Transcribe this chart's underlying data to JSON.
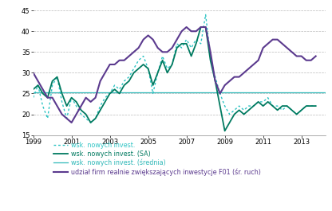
{
  "ylim": [
    15,
    46
  ],
  "yticks": [
    15,
    20,
    25,
    30,
    35,
    40,
    45
  ],
  "xlim": [
    1999.0,
    2014.25
  ],
  "xticks": [
    1999,
    2001,
    2003,
    2005,
    2007,
    2009,
    2011,
    2013
  ],
  "mean_line": 25.2,
  "legend_labels": [
    "wsk. nowych invest.",
    "wsk. nowych invest. (SA)",
    "wsk. nowych invest. (średnia)",
    "udział firm realnie zwiększających inwestycje F01 (śr. ruch)"
  ],
  "colors": {
    "dotted": "#2EC4C4",
    "sa": "#007A60",
    "mean": "#2EB8B8",
    "purple": "#5B3A8E"
  },
  "background": "#FFFFFF",
  "grid_color": "#BBBBBB",
  "times": [
    1999.0,
    1999.25,
    1999.5,
    1999.75,
    2000.0,
    2000.25,
    2000.5,
    2000.75,
    2001.0,
    2001.25,
    2001.5,
    2001.75,
    2002.0,
    2002.25,
    2002.5,
    2002.75,
    2003.0,
    2003.25,
    2003.5,
    2003.75,
    2004.0,
    2004.25,
    2004.5,
    2004.75,
    2005.0,
    2005.25,
    2005.5,
    2005.75,
    2006.0,
    2006.25,
    2006.5,
    2006.75,
    2007.0,
    2007.25,
    2007.5,
    2007.75,
    2008.0,
    2008.25,
    2008.5,
    2008.75,
    2009.0,
    2009.25,
    2009.5,
    2009.75,
    2010.0,
    2010.25,
    2010.5,
    2010.75,
    2011.0,
    2011.25,
    2011.5,
    2011.75,
    2012.0,
    2012.25,
    2012.5,
    2012.75,
    2013.0,
    2013.25,
    2013.5,
    2013.75
  ],
  "dotted_values": [
    24,
    27,
    22,
    19,
    27,
    29,
    23,
    19,
    24,
    22,
    20,
    19,
    18,
    19,
    22,
    24,
    25,
    27,
    26,
    28,
    29,
    31,
    33,
    34,
    31,
    25,
    30,
    34,
    31,
    32,
    37,
    36,
    38,
    36,
    38,
    37,
    44,
    34,
    29,
    25,
    22,
    20,
    21,
    22,
    21,
    22,
    22,
    23,
    23,
    24,
    22,
    22,
    21,
    22,
    21,
    20,
    21,
    22,
    22,
    22
  ],
  "sa_values": [
    26,
    27,
    25,
    24,
    28,
    29,
    25,
    22,
    24,
    23,
    21,
    20,
    18,
    19,
    21,
    23,
    25,
    26,
    25,
    27,
    28,
    30,
    31,
    32,
    31,
    27,
    30,
    33,
    30,
    32,
    36,
    37,
    37,
    34,
    37,
    41,
    41,
    33,
    28,
    22,
    16,
    18,
    20,
    21,
    20,
    21,
    22,
    23,
    22,
    23,
    22,
    21,
    22,
    22,
    21,
    20,
    21,
    22,
    22,
    22
  ],
  "purple_values": [
    30,
    28,
    26,
    24,
    24,
    22,
    20,
    19,
    18,
    20,
    22,
    24,
    23,
    24,
    28,
    30,
    32,
    32,
    33,
    33,
    34,
    35,
    36,
    38,
    39,
    38,
    36,
    35,
    35,
    36,
    38,
    40,
    41,
    40,
    40,
    41,
    41,
    35,
    28,
    25,
    27,
    28,
    29,
    29,
    30,
    31,
    32,
    33,
    36,
    37,
    38,
    38,
    37,
    36,
    35,
    34,
    34,
    33,
    33,
    34
  ]
}
